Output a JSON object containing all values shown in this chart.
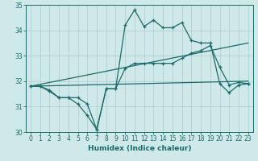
{
  "background_color": "#cfe9e9",
  "grid_color": "#b0d0d0",
  "line_color": "#1a6b6b",
  "x_label": "Humidex (Indice chaleur)",
  "xlim": [
    -0.5,
    23.5
  ],
  "ylim": [
    30,
    35
  ],
  "yticks": [
    30,
    31,
    32,
    33,
    34,
    35
  ],
  "xticks": [
    0,
    1,
    2,
    3,
    4,
    5,
    6,
    7,
    8,
    9,
    10,
    11,
    12,
    13,
    14,
    15,
    16,
    17,
    18,
    19,
    20,
    21,
    22,
    23
  ],
  "line1_x": [
    0,
    1,
    2,
    3,
    4,
    5,
    6,
    7,
    8,
    9,
    10,
    11,
    12,
    13,
    14,
    15,
    16,
    17,
    18,
    19,
    20,
    21,
    22,
    23
  ],
  "line1_y": [
    31.8,
    31.8,
    31.6,
    31.35,
    31.35,
    31.1,
    30.65,
    30.1,
    31.7,
    31.7,
    34.2,
    34.8,
    34.15,
    34.4,
    34.1,
    34.1,
    34.3,
    33.6,
    33.5,
    33.5,
    31.9,
    31.55,
    31.85,
    31.9
  ],
  "line2_x": [
    0,
    1,
    2,
    3,
    4,
    5,
    6,
    7,
    8,
    9,
    10,
    11,
    12,
    13,
    14,
    15,
    16,
    17,
    18,
    19,
    20,
    21,
    22,
    23
  ],
  "line2_y": [
    31.8,
    31.8,
    31.65,
    31.35,
    31.35,
    31.35,
    31.1,
    30.1,
    31.7,
    31.7,
    32.5,
    32.7,
    32.7,
    32.7,
    32.7,
    32.7,
    32.9,
    33.1,
    33.2,
    33.4,
    32.55,
    31.85,
    31.95,
    31.9
  ],
  "line3_x": [
    0,
    23
  ],
  "line3_y": [
    31.8,
    33.5
  ],
  "line4_x": [
    0,
    23
  ],
  "line4_y": [
    31.8,
    32.0
  ],
  "tick_fontsize": 5.5,
  "xlabel_fontsize": 6.5
}
